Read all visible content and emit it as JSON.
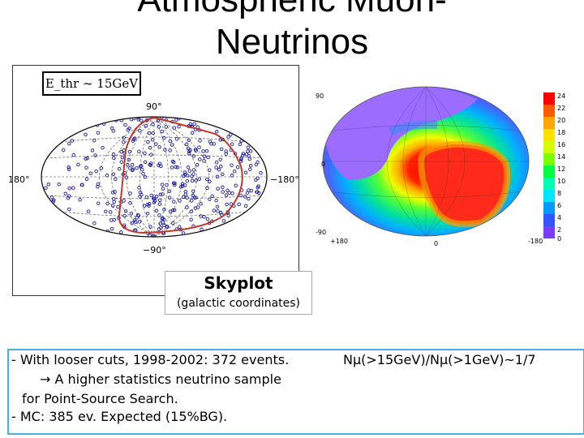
{
  "slide": {
    "title_line1": "Atmospheric Muon-",
    "title_line2": "Neutrinos"
  },
  "left_skymap": {
    "threshold_label": "E_thr ~ 15GeV",
    "label_top": "90°",
    "label_bottom": "−90°",
    "label_left": "180°",
    "label_right": "−180°",
    "event_color": "#1a1aa0",
    "curve_color": "#c0392b"
  },
  "right_skymap": {
    "axis_top_left": "90",
    "axis_left_mid": "0",
    "axis_bottom_left_lat": "-90",
    "axis_bottom_left": "+180",
    "axis_bottom_mid": "0",
    "axis_bottom_right": "-180",
    "colorbar_ticks": [
      "24",
      "22",
      "20",
      "18",
      "16",
      "14",
      "12",
      "10",
      "8",
      "6",
      "4",
      "2",
      "0"
    ]
  },
  "skyplot": {
    "title": "Skyplot",
    "subtitle": "(galactic coordinates)"
  },
  "notes": {
    "line1": "- With looser cuts, 1998-2002: 372 events.",
    "line1_right": "Nμ(>15GeV)/Nμ(>1GeV)~1/7",
    "line2": "→ A higher statistics neutrino sample",
    "line3": "for Point-Source Search.",
    "line4": "- MC: 385 ev. Expected (15%BG)."
  }
}
